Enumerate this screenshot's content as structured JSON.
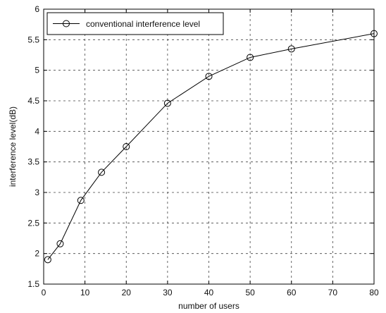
{
  "chart_data": {
    "type": "line",
    "title": "",
    "xlabel": "number of users",
    "ylabel": "interference level(dB)",
    "xlim": [
      0,
      80
    ],
    "ylim": [
      1.5,
      6
    ],
    "xticks": [
      0,
      10,
      20,
      30,
      40,
      50,
      60,
      70,
      80
    ],
    "yticks": [
      1.5,
      2,
      2.5,
      3,
      3.5,
      4,
      4.5,
      5,
      5.5,
      6
    ],
    "grid": true,
    "legend_position": "top-left",
    "series": [
      {
        "name": "conventional interference level",
        "marker": "circle",
        "color": "#000000",
        "x": [
          1,
          4,
          9,
          14,
          20,
          30,
          40,
          50,
          60,
          80
        ],
        "y": [
          1.9,
          2.16,
          2.87,
          3.33,
          3.75,
          4.46,
          4.9,
          5.21,
          5.35,
          5.6
        ]
      }
    ]
  }
}
